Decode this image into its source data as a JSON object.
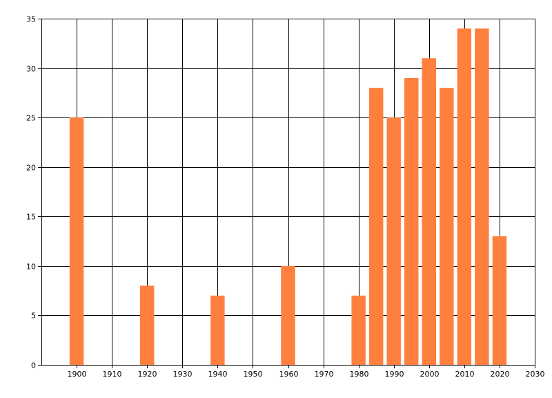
{
  "chart_data": {
    "type": "bar",
    "x": [
      1900,
      1920,
      1940,
      1960,
      1980,
      1985,
      1990,
      1995,
      2000,
      2005,
      2010,
      2015,
      2020
    ],
    "values": [
      25,
      8,
      7,
      10,
      7,
      28,
      25,
      29,
      31,
      28,
      34,
      34,
      13
    ],
    "xlim": [
      1890,
      2030
    ],
    "ylim": [
      0,
      35
    ],
    "xticks": [
      "1900",
      "1910",
      "1920",
      "1930",
      "1940",
      "1950",
      "1960",
      "1970",
      "1980",
      "1990",
      "2000",
      "2010",
      "2020",
      "2030"
    ],
    "yticks": [
      "0",
      "5",
      "10",
      "15",
      "20",
      "25",
      "30",
      "35"
    ],
    "grid": true,
    "legend": "none",
    "title": "",
    "xlabel": "",
    "ylabel": "",
    "bar_color": "#ff7f3f"
  }
}
